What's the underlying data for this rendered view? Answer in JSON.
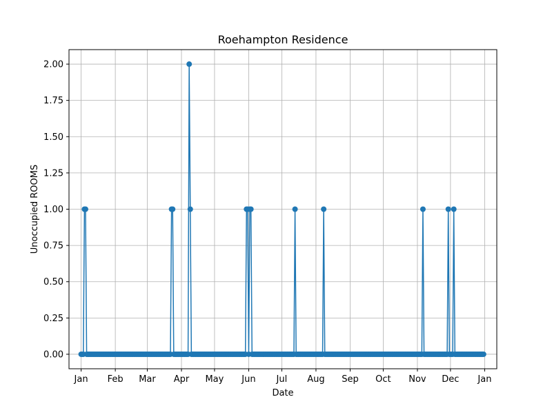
{
  "chart_data": {
    "type": "line",
    "title": "Roehampton Residence",
    "xlabel": "Date",
    "ylabel": "Unoccupied ROOMS",
    "x_tick_labels": [
      "Jan",
      "Feb",
      "Mar",
      "Apr",
      "May",
      "Jun",
      "Jul",
      "Aug",
      "Sep",
      "Oct",
      "Nov",
      "Dec",
      "Jan"
    ],
    "y_tick_labels": [
      "0.00",
      "0.25",
      "0.50",
      "0.75",
      "1.00",
      "1.25",
      "1.50",
      "1.75",
      "2.00"
    ],
    "xlim": [
      "2023-12-21",
      "2025-01-12"
    ],
    "ylim": [
      -0.1,
      2.1
    ],
    "grid": true,
    "marker": "circle",
    "series": [
      {
        "color": "#1f77b4",
        "x_start": "2024-01-01",
        "x_end": "2024-12-31",
        "baseline": 0,
        "points": [
          {
            "x": "2024-01-04",
            "y": 1
          },
          {
            "x": "2024-01-05",
            "y": 1
          },
          {
            "x": "2024-03-23",
            "y": 1
          },
          {
            "x": "2024-03-24",
            "y": 1
          },
          {
            "x": "2024-04-08",
            "y": 2
          },
          {
            "x": "2024-04-09",
            "y": 1
          },
          {
            "x": "2024-05-30",
            "y": 1
          },
          {
            "x": "2024-05-31",
            "y": 1
          },
          {
            "x": "2024-06-02",
            "y": 1
          },
          {
            "x": "2024-06-03",
            "y": 1
          },
          {
            "x": "2024-07-13",
            "y": 1
          },
          {
            "x": "2024-08-08",
            "y": 1
          },
          {
            "x": "2024-11-06",
            "y": 1
          },
          {
            "x": "2024-11-29",
            "y": 1
          },
          {
            "x": "2024-12-04",
            "y": 1
          }
        ]
      }
    ]
  }
}
